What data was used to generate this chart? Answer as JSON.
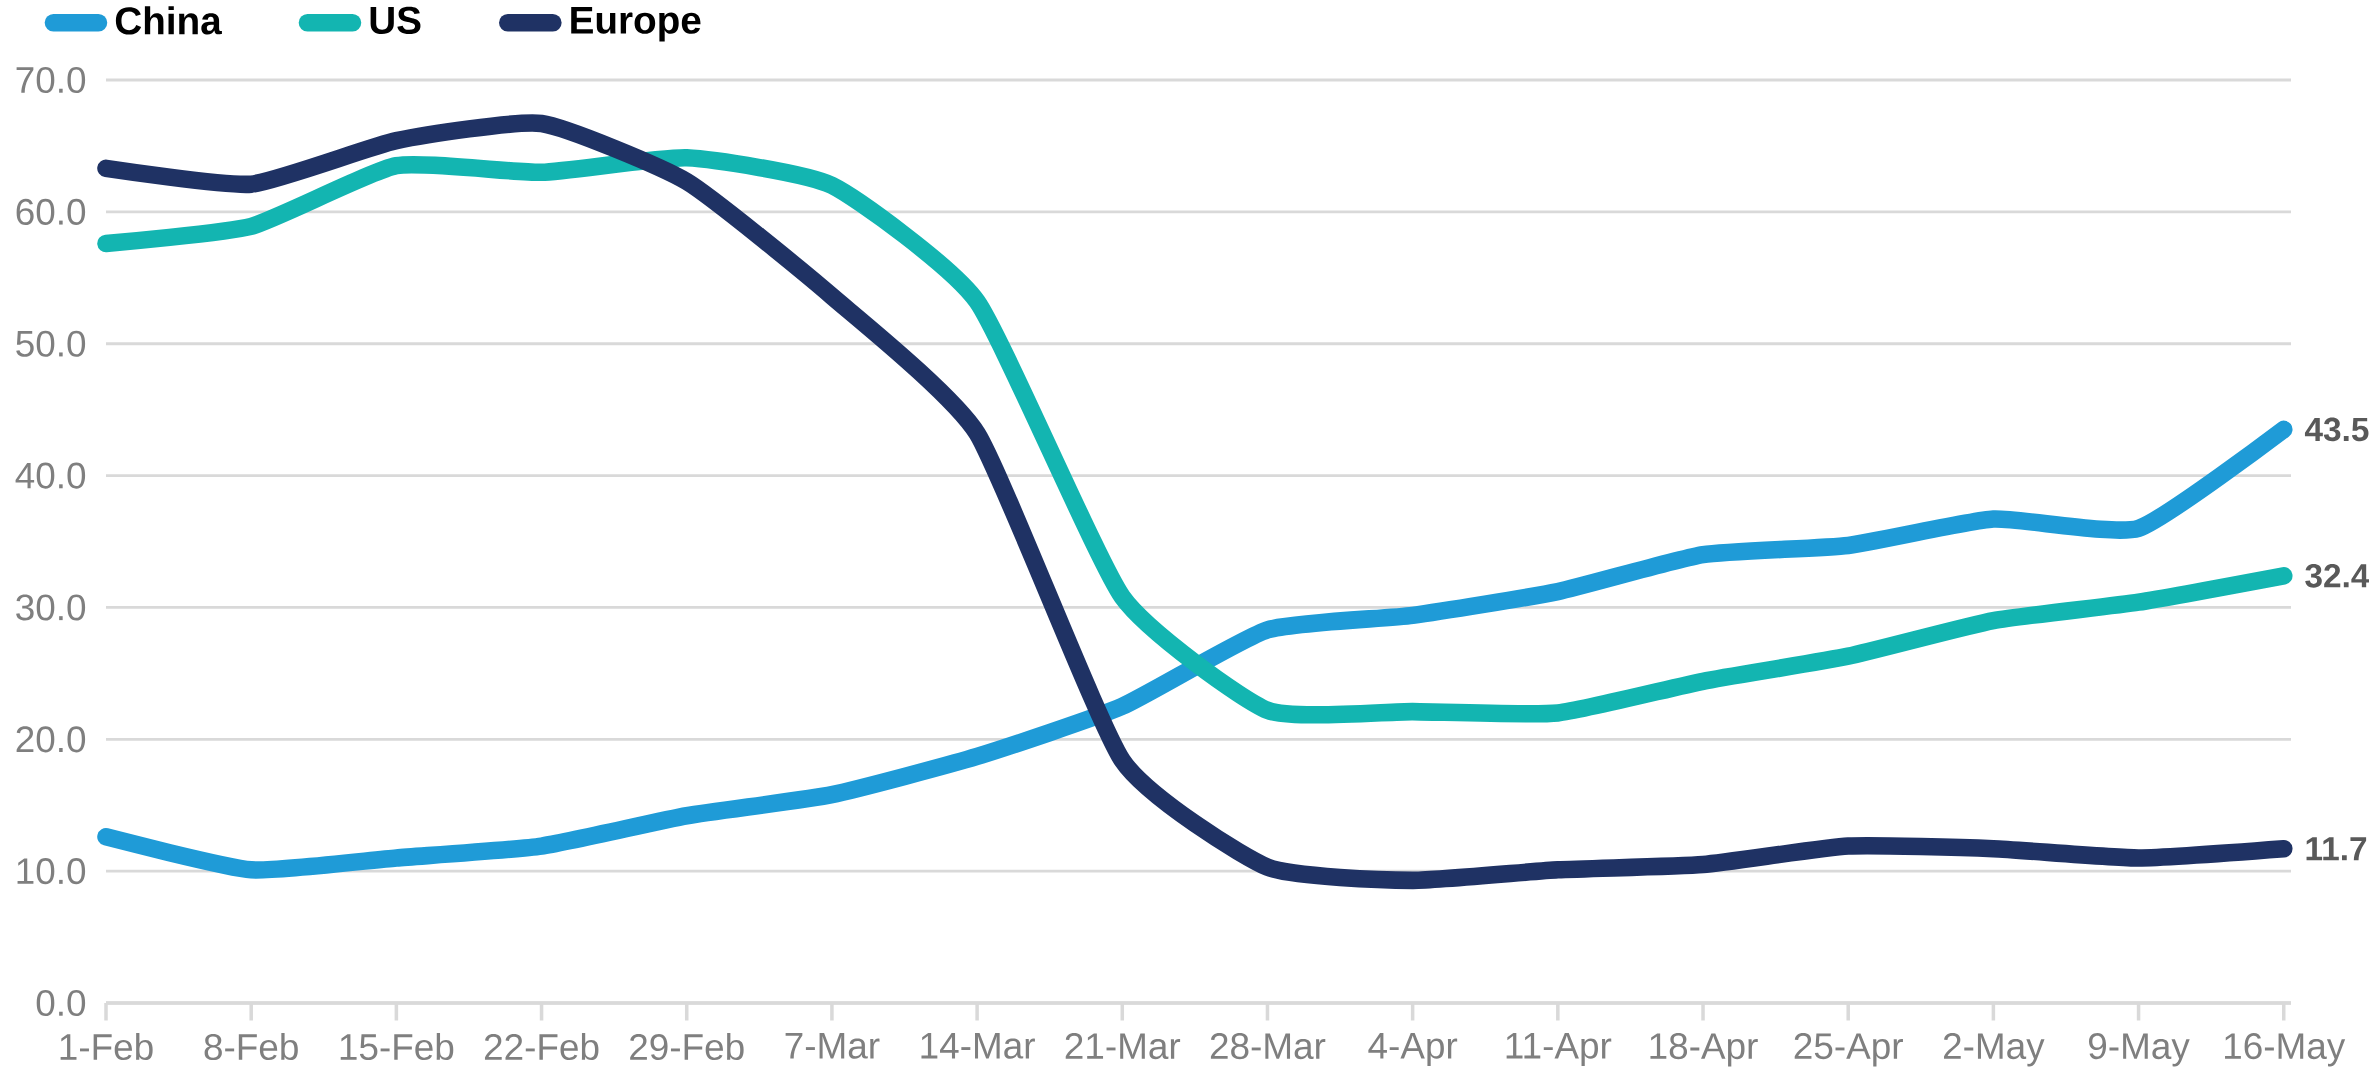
{
  "chart_data": {
    "type": "line",
    "categories": [
      "1-Feb",
      "8-Feb",
      "15-Feb",
      "22-Feb",
      "29-Feb",
      "7-Mar",
      "14-Mar",
      "21-Mar",
      "28-Mar",
      "4-Apr",
      "11-Apr",
      "18-Apr",
      "25-Apr",
      "2-May",
      "9-May",
      "16-May"
    ],
    "series": [
      {
        "name": "China",
        "color": "#1f9bd7",
        "values": [
          12.6,
          10.1,
          11.0,
          11.9,
          14.2,
          15.8,
          18.7,
          22.5,
          28.3,
          29.4,
          31.2,
          34.0,
          34.7,
          36.7,
          36.0,
          43.5
        ],
        "value_labels": [
          null,
          null,
          null,
          null,
          null,
          null,
          null,
          null,
          null,
          null,
          null,
          null,
          null,
          null,
          null,
          "43.5"
        ]
      },
      {
        "name": "US",
        "color": "#13b5b1",
        "values": [
          57.6,
          58.9,
          63.5,
          63.0,
          64.1,
          62.0,
          53.2,
          30.8,
          22.2,
          22.1,
          22.0,
          24.4,
          26.3,
          29.0,
          30.4,
          32.4
        ],
        "value_labels": [
          null,
          null,
          null,
          null,
          null,
          null,
          null,
          null,
          null,
          null,
          null,
          null,
          null,
          null,
          null,
          "32.4"
        ]
      },
      {
        "name": "Europe",
        "color": "#1f3264",
        "values": [
          63.3,
          62.1,
          65.4,
          66.7,
          62.3,
          53.6,
          43.2,
          18.4,
          10.3,
          9.3,
          10.1,
          10.5,
          11.9,
          11.7,
          11.0,
          11.7
        ],
        "value_labels": [
          null,
          null,
          null,
          null,
          null,
          null,
          null,
          null,
          null,
          null,
          null,
          null,
          null,
          null,
          null,
          "11.7"
        ]
      }
    ],
    "ylim": [
      0,
      70
    ],
    "yticks": [
      {
        "value": 0,
        "label": "0.0"
      },
      {
        "value": 10,
        "label": "10.0"
      },
      {
        "value": 20,
        "label": "20.0"
      },
      {
        "value": 30,
        "label": "30.0"
      },
      {
        "value": 40,
        "label": "40.0"
      },
      {
        "value": 50,
        "label": "50.0"
      },
      {
        "value": 60,
        "label": "60.0"
      },
      {
        "value": 70,
        "label": "70.0"
      }
    ],
    "grid": "y",
    "legend": "top left",
    "marker": "none",
    "line_style": "solid"
  }
}
